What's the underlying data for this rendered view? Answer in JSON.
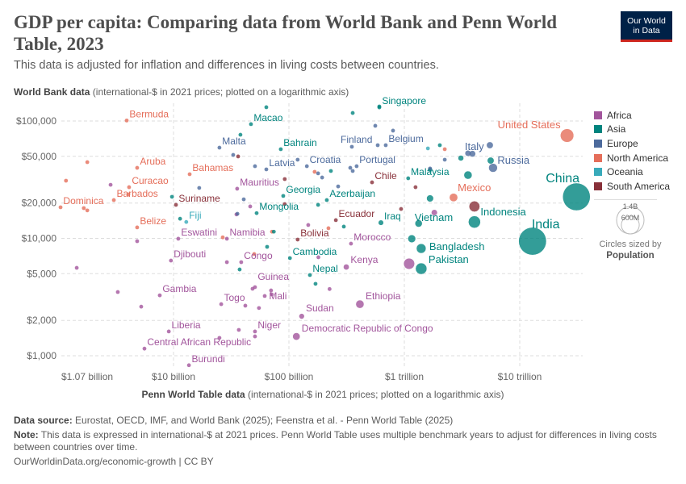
{
  "header": {
    "title": "GDP per capita: Comparing data from World Bank and Penn World Table, 2023",
    "subtitle": "This data is adjusted for inflation and differences in living costs between countries.",
    "logo_line1": "Our World",
    "logo_line2": "in Data"
  },
  "colors": {
    "Africa": "#a2559c",
    "Asia": "#00847e",
    "Europe": "#4c6a9c",
    "North America": "#e56e5a",
    "Oceania": "#38aaba",
    "South America": "#883039"
  },
  "chart_data": {
    "type": "scatter",
    "title": "GDP per capita: Comparing data from World Bank and Penn World Table, 2023",
    "ylabel_bold": "World Bank data",
    "ylabel_rest": " (international-$ in 2021 prices; plotted on a logarithmic axis)",
    "xlabel_bold": "Penn World Table data",
    "xlabel_rest": " (international-$ in 2021 prices; plotted on a logarithmic axis)",
    "x_scale": "log",
    "y_scale": "log",
    "x_unit": "billion international-$",
    "xlim": [
      1.07,
      34000
    ],
    "ylim": [
      850,
      130000
    ],
    "grid": true,
    "x_ticks": [
      {
        "value": 1.07,
        "label": "$1.07 billion"
      },
      {
        "value": 10,
        "label": "$10 billion"
      },
      {
        "value": 100,
        "label": "$100 billion"
      },
      {
        "value": 1000,
        "label": "$1 trillion"
      },
      {
        "value": 10000,
        "label": "$10 trillion"
      }
    ],
    "y_ticks": [
      {
        "value": 100000,
        "label": "$100,000"
      },
      {
        "value": 50000,
        "label": "$50,000"
      },
      {
        "value": 20000,
        "label": "$20,000"
      },
      {
        "value": 10000,
        "label": "$10,000"
      },
      {
        "value": 5000,
        "label": "$5,000"
      },
      {
        "value": 2000,
        "label": "$2,000"
      },
      {
        "value": 1000,
        "label": "$1,000"
      }
    ],
    "legend": {
      "position": "right",
      "items": [
        "Africa",
        "Asia",
        "Europe",
        "North America",
        "Oceania",
        "South America"
      ]
    },
    "size_legend": {
      "big": "1.4B",
      "small": "600M",
      "note": "Circles sized by",
      "variable": "Population"
    },
    "points": [
      {
        "name": "United States",
        "region": "North America",
        "x": 25700,
        "y": 75200,
        "pop": 335
      },
      {
        "name": "China",
        "region": "Asia",
        "x": 31000,
        "y": 22600,
        "pop": 1410
      },
      {
        "name": "India",
        "region": "Asia",
        "x": 12900,
        "y": 9460,
        "pop": 1430
      },
      {
        "name": "Indonesia",
        "region": "Asia",
        "x": 4050,
        "y": 13800,
        "pop": 275
      },
      {
        "name": "Russia",
        "region": "Europe",
        "x": 5870,
        "y": 39900,
        "pop": 144
      },
      {
        "name": "Italy",
        "region": "Europe",
        "x": 3560,
        "y": 53100,
        "pop": 59
      },
      {
        "name": "Mexico",
        "region": "North America",
        "x": 2670,
        "y": 22300,
        "pop": 128
      },
      {
        "name": "Pakistan",
        "region": "Asia",
        "x": 1400,
        "y": 5520,
        "pop": 240
      },
      {
        "name": "Bangladesh",
        "region": "Asia",
        "x": 1400,
        "y": 8200,
        "pop": 172
      },
      {
        "name": "Vietnam",
        "region": "Asia",
        "x": 1330,
        "y": 13400,
        "pop": 99
      },
      {
        "name": "Malaysia",
        "region": "Asia",
        "x": 1080,
        "y": 32500
      },
      {
        "name": "Singapore",
        "region": "Asia",
        "x": 607,
        "y": 130600
      },
      {
        "name": "Belgium",
        "region": "Europe",
        "x": 690,
        "y": 62200
      },
      {
        "name": "Finland",
        "region": "Europe",
        "x": 588,
        "y": 62200
      },
      {
        "name": "Portugal",
        "region": "Europe",
        "x": 386,
        "y": 41200
      },
      {
        "name": "Chile",
        "region": "South America",
        "x": 525,
        "y": 30000
      },
      {
        "name": "Iraq",
        "region": "Asia",
        "x": 627,
        "y": 13600,
        "pop": 45
      },
      {
        "name": "Ethiopia",
        "region": "Africa",
        "x": 412,
        "y": 2750,
        "pop": 126
      },
      {
        "name": "Democratic Republic of Congo",
        "region": "Africa",
        "x": 116,
        "y": 1460,
        "pop": 102
      },
      {
        "name": "Kenya",
        "region": "Africa",
        "x": 314,
        "y": 5700,
        "pop": 55
      },
      {
        "name": "Morocco",
        "region": "Africa",
        "x": 345,
        "y": 9020
      },
      {
        "name": "Macao",
        "region": "Asia",
        "x": 46.9,
        "y": 94000
      },
      {
        "name": "Croatia",
        "region": "Europe",
        "x": 143,
        "y": 41200
      },
      {
        "name": "Latvia",
        "region": "Europe",
        "x": 63.7,
        "y": 38700
      },
      {
        "name": "Bahrain",
        "region": "Asia",
        "x": 85,
        "y": 57500
      },
      {
        "name": "Malta",
        "region": "Europe",
        "x": 25,
        "y": 59300
      },
      {
        "name": "Bermuda",
        "region": "North America",
        "x": 3.93,
        "y": 101000
      },
      {
        "name": "Aruba",
        "region": "North America",
        "x": 4.84,
        "y": 39900
      },
      {
        "name": "Bahamas",
        "region": "North America",
        "x": 13.8,
        "y": 35200
      },
      {
        "name": "Curacao",
        "region": "North America",
        "x": 4.12,
        "y": 27300
      },
      {
        "name": "Barbados",
        "region": "North America",
        "x": 3.04,
        "y": 21200
      },
      {
        "name": "Dominica",
        "region": "North America",
        "x": 1.05,
        "y": 18400
      },
      {
        "name": "Belize",
        "region": "North America",
        "x": 4.84,
        "y": 12400
      },
      {
        "name": "Suriname",
        "region": "South America",
        "x": 10.5,
        "y": 19300
      },
      {
        "name": "Fiji",
        "region": "Oceania",
        "x": 12.9,
        "y": 13800
      },
      {
        "name": "Eswatini",
        "region": "Africa",
        "x": 11,
        "y": 9930
      },
      {
        "name": "Djibouti",
        "region": "Africa",
        "x": 9.5,
        "y": 6470
      },
      {
        "name": "Gambia",
        "region": "Africa",
        "x": 7.6,
        "y": 3270
      },
      {
        "name": "Liberia",
        "region": "Africa",
        "x": 9.1,
        "y": 1610
      },
      {
        "name": "Central African Republic",
        "region": "Africa",
        "x": 5.6,
        "y": 1150
      },
      {
        "name": "Burundi",
        "region": "Africa",
        "x": 13.6,
        "y": 830
      },
      {
        "name": "Mauritius",
        "region": "Africa",
        "x": 35.6,
        "y": 26500
      },
      {
        "name": "Mongolia",
        "region": "Asia",
        "x": 52.5,
        "y": 16400
      },
      {
        "name": "Namibia",
        "region": "Africa",
        "x": 29,
        "y": 9930
      },
      {
        "name": "Congo",
        "region": "Africa",
        "x": 38.6,
        "y": 6270
      },
      {
        "name": "Guinea",
        "region": "Africa",
        "x": 50.8,
        "y": 3840
      },
      {
        "name": "Togo",
        "region": "Africa",
        "x": 25.9,
        "y": 2750
      },
      {
        "name": "Mali",
        "region": "Africa",
        "x": 61.7,
        "y": 3230
      },
      {
        "name": "Niger",
        "region": "Africa",
        "x": 50.8,
        "y": 1610
      },
      {
        "name": "Georgia",
        "region": "Asia",
        "x": 89.3,
        "y": 23000
      },
      {
        "name": "Azerbaijan",
        "region": "Asia",
        "x": 213,
        "y": 21200
      },
      {
        "name": "Bolivia",
        "region": "South America",
        "x": 119,
        "y": 9770
      },
      {
        "name": "Ecuador",
        "region": "South America",
        "x": 255,
        "y": 14300
      },
      {
        "name": "Cambodia",
        "region": "Asia",
        "x": 102,
        "y": 6790
      },
      {
        "name": "Nepal",
        "region": "Asia",
        "x": 152,
        "y": 4870
      },
      {
        "name": "Sudan",
        "region": "Africa",
        "x": 129,
        "y": 2170,
        "pop": 48
      },
      {
        "region": "South America",
        "x": 4050,
        "y": 18700,
        "pop": 216
      },
      {
        "region": "Asia",
        "x": 3560,
        "y": 34600,
        "pop": 124
      },
      {
        "region": "Europe",
        "x": 5510,
        "y": 62200,
        "pop": 84
      },
      {
        "region": "Europe",
        "x": 3890,
        "y": 52600,
        "pop": 68
      },
      {
        "region": "Asia",
        "x": 3090,
        "y": 48300,
        "pop": 52
      },
      {
        "region": "Asia",
        "x": 5600,
        "y": 46000,
        "pop": 85
      },
      {
        "region": "Africa",
        "x": 1100,
        "y": 6080,
        "pop": 225
      },
      {
        "region": "Asia",
        "x": 1160,
        "y": 9930,
        "pop": 113
      },
      {
        "region": "Asia",
        "x": 1670,
        "y": 21900,
        "pop": 90
      },
      {
        "region": "Asia",
        "x": 1670,
        "y": 38500,
        "pop": 36
      },
      {
        "region": "Africa",
        "x": 1820,
        "y": 16600,
        "pop": 60
      },
      {
        "region": "Oceania",
        "x": 1600,
        "y": 58400
      },
      {
        "region": "Asia",
        "x": 2030,
        "y": 62200
      },
      {
        "region": "North America",
        "x": 2240,
        "y": 57500
      },
      {
        "region": "Europe",
        "x": 2240,
        "y": 46800
      },
      {
        "region": "Europe",
        "x": 1670,
        "y": 39400
      },
      {
        "region": "South America",
        "x": 1250,
        "y": 27300
      },
      {
        "region": "South America",
        "x": 937,
        "y": 17800
      },
      {
        "region": "North America",
        "x": 1.79,
        "y": 44600
      },
      {
        "region": "North America",
        "x": 1.17,
        "y": 31000
      },
      {
        "region": "Africa",
        "x": 2.85,
        "y": 28600
      },
      {
        "region": "North America",
        "x": 1.67,
        "y": 18100
      },
      {
        "region": "North America",
        "x": 1.79,
        "y": 17300
      },
      {
        "region": "North America",
        "x": 4.06,
        "y": 23700
      },
      {
        "region": "Africa",
        "x": 4.84,
        "y": 9460
      },
      {
        "region": "Africa",
        "x": 1.45,
        "y": 5610
      },
      {
        "region": "Africa",
        "x": 3.29,
        "y": 3490
      },
      {
        "region": "Africa",
        "x": 5.25,
        "y": 2620
      },
      {
        "region": "Asia",
        "x": 38,
        "y": 76400
      },
      {
        "region": "Europe",
        "x": 32.9,
        "y": 51400
      },
      {
        "region": "South America",
        "x": 36.3,
        "y": 49900
      },
      {
        "region": "Europe",
        "x": 50.8,
        "y": 41200
      },
      {
        "region": "Europe",
        "x": 16.7,
        "y": 26900
      },
      {
        "region": "Europe",
        "x": 40.6,
        "y": 21500
      },
      {
        "region": "Asia",
        "x": 9.7,
        "y": 22600
      },
      {
        "region": "Asia",
        "x": 11.4,
        "y": 14700
      },
      {
        "region": "Africa",
        "x": 35.1,
        "y": 16000
      },
      {
        "region": "Africa",
        "x": 46.2,
        "y": 18700
      },
      {
        "region": "Europe",
        "x": 35.8,
        "y": 16200
      },
      {
        "region": "North America",
        "x": 26.7,
        "y": 10200
      },
      {
        "region": "North America",
        "x": 71.3,
        "y": 11400
      },
      {
        "region": "Asia",
        "x": 74,
        "y": 11400
      },
      {
        "region": "Asia",
        "x": 64.7,
        "y": 8470
      },
      {
        "region": "North America",
        "x": 50,
        "y": 7350
      },
      {
        "region": "Africa",
        "x": 29,
        "y": 6270
      },
      {
        "region": "Asia",
        "x": 37.4,
        "y": 5430
      },
      {
        "region": "Africa",
        "x": 48.4,
        "y": 3720
      },
      {
        "region": "Africa",
        "x": 41.9,
        "y": 2670
      },
      {
        "region": "Africa",
        "x": 55,
        "y": 2550
      },
      {
        "region": "Africa",
        "x": 70,
        "y": 3600
      },
      {
        "region": "Africa",
        "x": 36.8,
        "y": 1660
      },
      {
        "region": "Africa",
        "x": 25,
        "y": 1420
      },
      {
        "region": "Africa",
        "x": 50.8,
        "y": 1460
      },
      {
        "region": "Africa",
        "x": 71,
        "y": 3330
      },
      {
        "region": "Asia",
        "x": 63.7,
        "y": 131000
      },
      {
        "region": "Asia",
        "x": 357,
        "y": 117000
      },
      {
        "region": "Asia",
        "x": 607,
        "y": 133000
      },
      {
        "region": "Europe",
        "x": 560,
        "y": 91000
      },
      {
        "region": "Europe",
        "x": 798,
        "y": 82800
      },
      {
        "region": "Europe",
        "x": 351,
        "y": 60300
      },
      {
        "region": "Europe",
        "x": 119,
        "y": 46800
      },
      {
        "region": "Europe",
        "x": 179,
        "y": 35800
      },
      {
        "region": "Europe",
        "x": 194,
        "y": 33000
      },
      {
        "region": "Asia",
        "x": 231,
        "y": 37500
      },
      {
        "region": "North America",
        "x": 167,
        "y": 36900
      },
      {
        "region": "South America",
        "x": 92,
        "y": 32000
      },
      {
        "region": "Europe",
        "x": 340,
        "y": 39900
      },
      {
        "region": "Europe",
        "x": 357,
        "y": 37500
      },
      {
        "region": "Europe",
        "x": 267,
        "y": 27700
      },
      {
        "region": "Asia",
        "x": 179,
        "y": 19300
      },
      {
        "region": "South America",
        "x": 92,
        "y": 19600
      },
      {
        "region": "Africa",
        "x": 147,
        "y": 13000
      },
      {
        "region": "North America",
        "x": 220,
        "y": 12200
      },
      {
        "region": "Asia",
        "x": 299,
        "y": 12600
      },
      {
        "region": "Africa",
        "x": 180,
        "y": 6900
      },
      {
        "region": "Asia",
        "x": 170,
        "y": 4100
      },
      {
        "region": "Africa",
        "x": 225,
        "y": 3700
      }
    ]
  },
  "footer": {
    "source_label": "Data source:",
    "source_text": " Eurostat, OECD, IMF, and World Bank (2025); Feenstra et al. - Penn World Table (2025)",
    "note_label": "Note:",
    "note_text": " This data is expressed in international-$ at 2021 prices. Penn World Table uses multiple benchmark years to adjust for differences in living costs between countries over time.",
    "url": "OurWorldinData.org/economic-growth | CC BY"
  }
}
